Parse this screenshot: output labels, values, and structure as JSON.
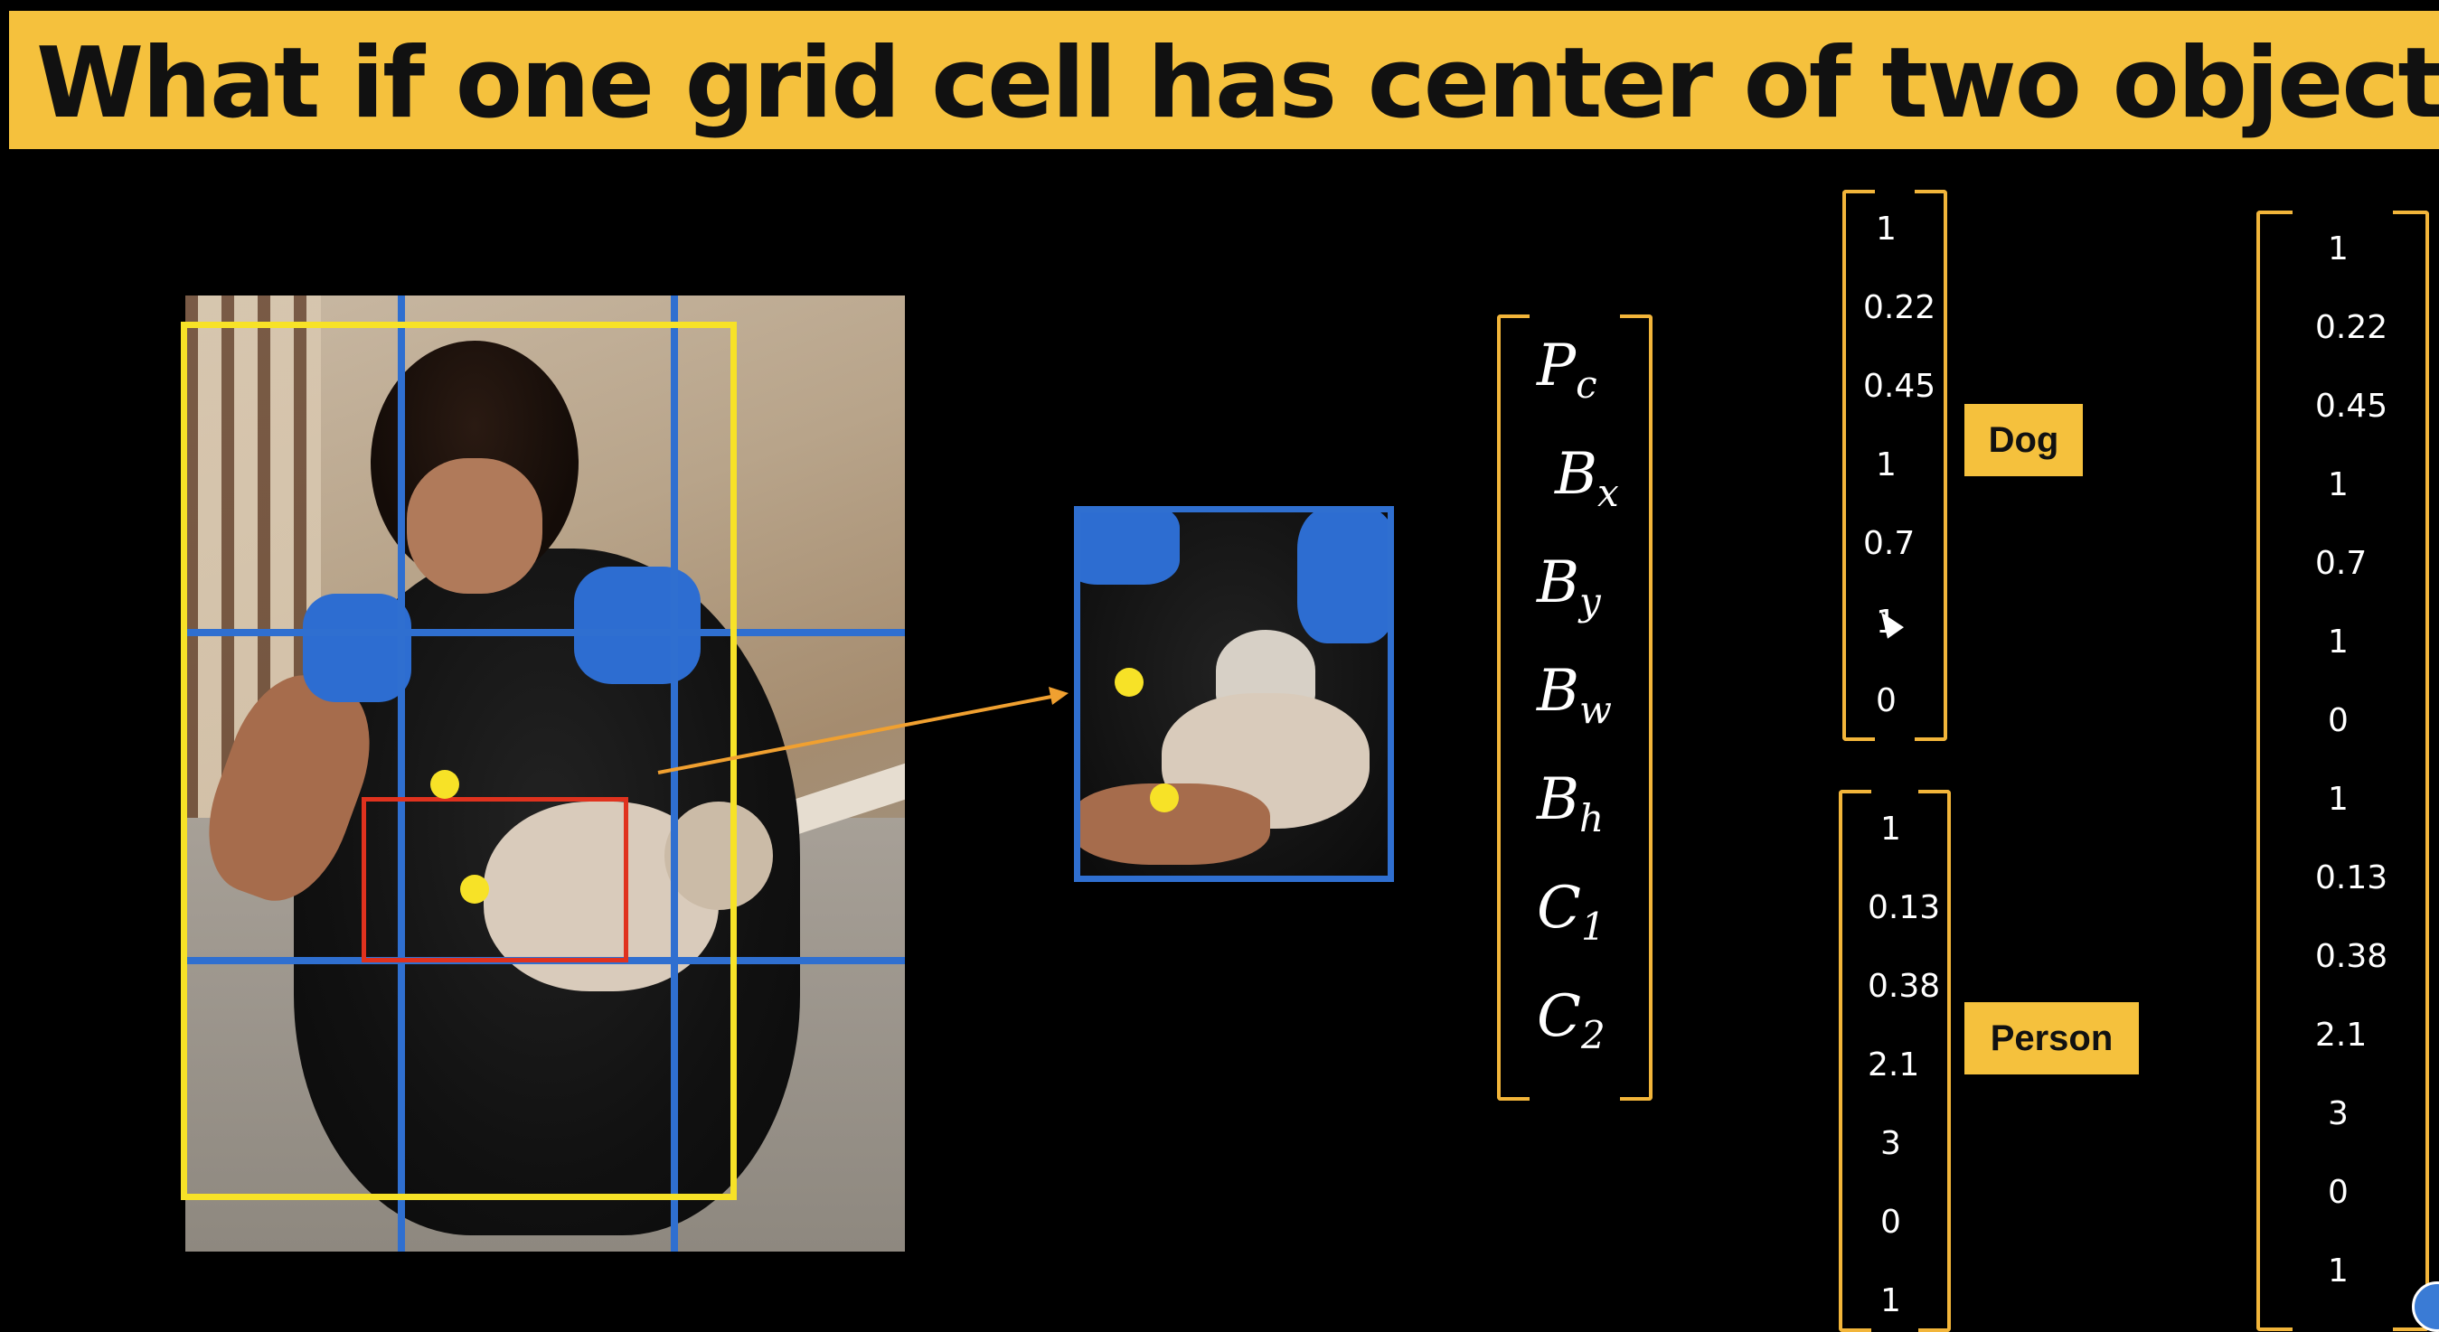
{
  "slide": {
    "title": "What if one grid cell has center of two objects?"
  },
  "vector_symbols": [
    {
      "base": "P",
      "sub": "c"
    },
    {
      "base": "B",
      "sub": "x"
    },
    {
      "base": "B",
      "sub": "y"
    },
    {
      "base": "B",
      "sub": "w"
    },
    {
      "base": "B",
      "sub": "h"
    },
    {
      "base": "C",
      "sub": "1"
    },
    {
      "base": "C",
      "sub": "2"
    }
  ],
  "dog_vector": [
    "1",
    "0.22",
    "0.45",
    "1",
    "0.7",
    "1",
    "0"
  ],
  "person_vector": [
    "1",
    "0.13",
    "0.38",
    "2.1",
    "3",
    "0",
    "1"
  ],
  "combined_vector": [
    "1",
    "0.22",
    "0.45",
    "1",
    "0.7",
    "1",
    "0",
    "1",
    "0.13",
    "0.38",
    "2.1",
    "3",
    "0",
    "1"
  ],
  "labels": {
    "dog": "Dog",
    "person": "Person"
  },
  "colors": {
    "title_bg": "#f5c13d",
    "grid": "#2f6fd0",
    "person_box": "#f7e227",
    "dog_box": "#e0321e",
    "bracket": "#f2b53a",
    "arrow": "#f0a030"
  }
}
